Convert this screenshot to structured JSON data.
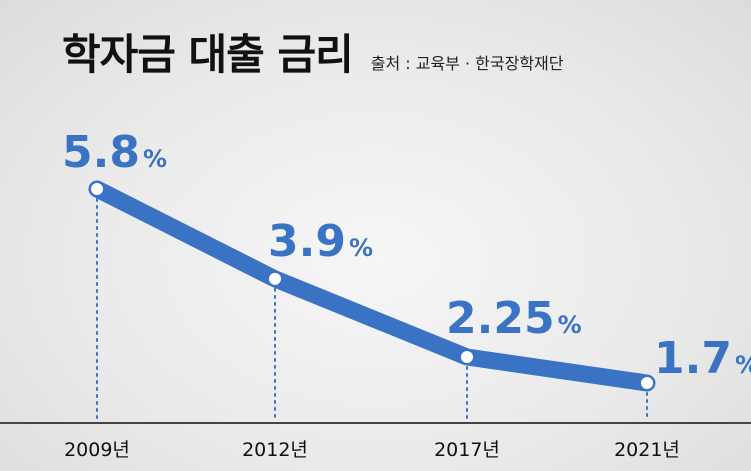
{
  "title": "학자금 대출 금리",
  "source": "출처 : 교육부 · 한국장학재단",
  "colors": {
    "line": "#3b73c4",
    "point_fill": "#ffffff",
    "axis": "#444444",
    "guide": "#3b73c4"
  },
  "chart_data": {
    "type": "line",
    "categories": [
      "2009년",
      "2012년",
      "2017년",
      "2021년"
    ],
    "series": [
      {
        "values": [
          5.8,
          3.9,
          2.25,
          1.7
        ],
        "labels": [
          "5.8",
          "3.9",
          "2.25",
          "1.7"
        ],
        "unit": "%"
      }
    ],
    "grid": false,
    "legend": "none"
  }
}
